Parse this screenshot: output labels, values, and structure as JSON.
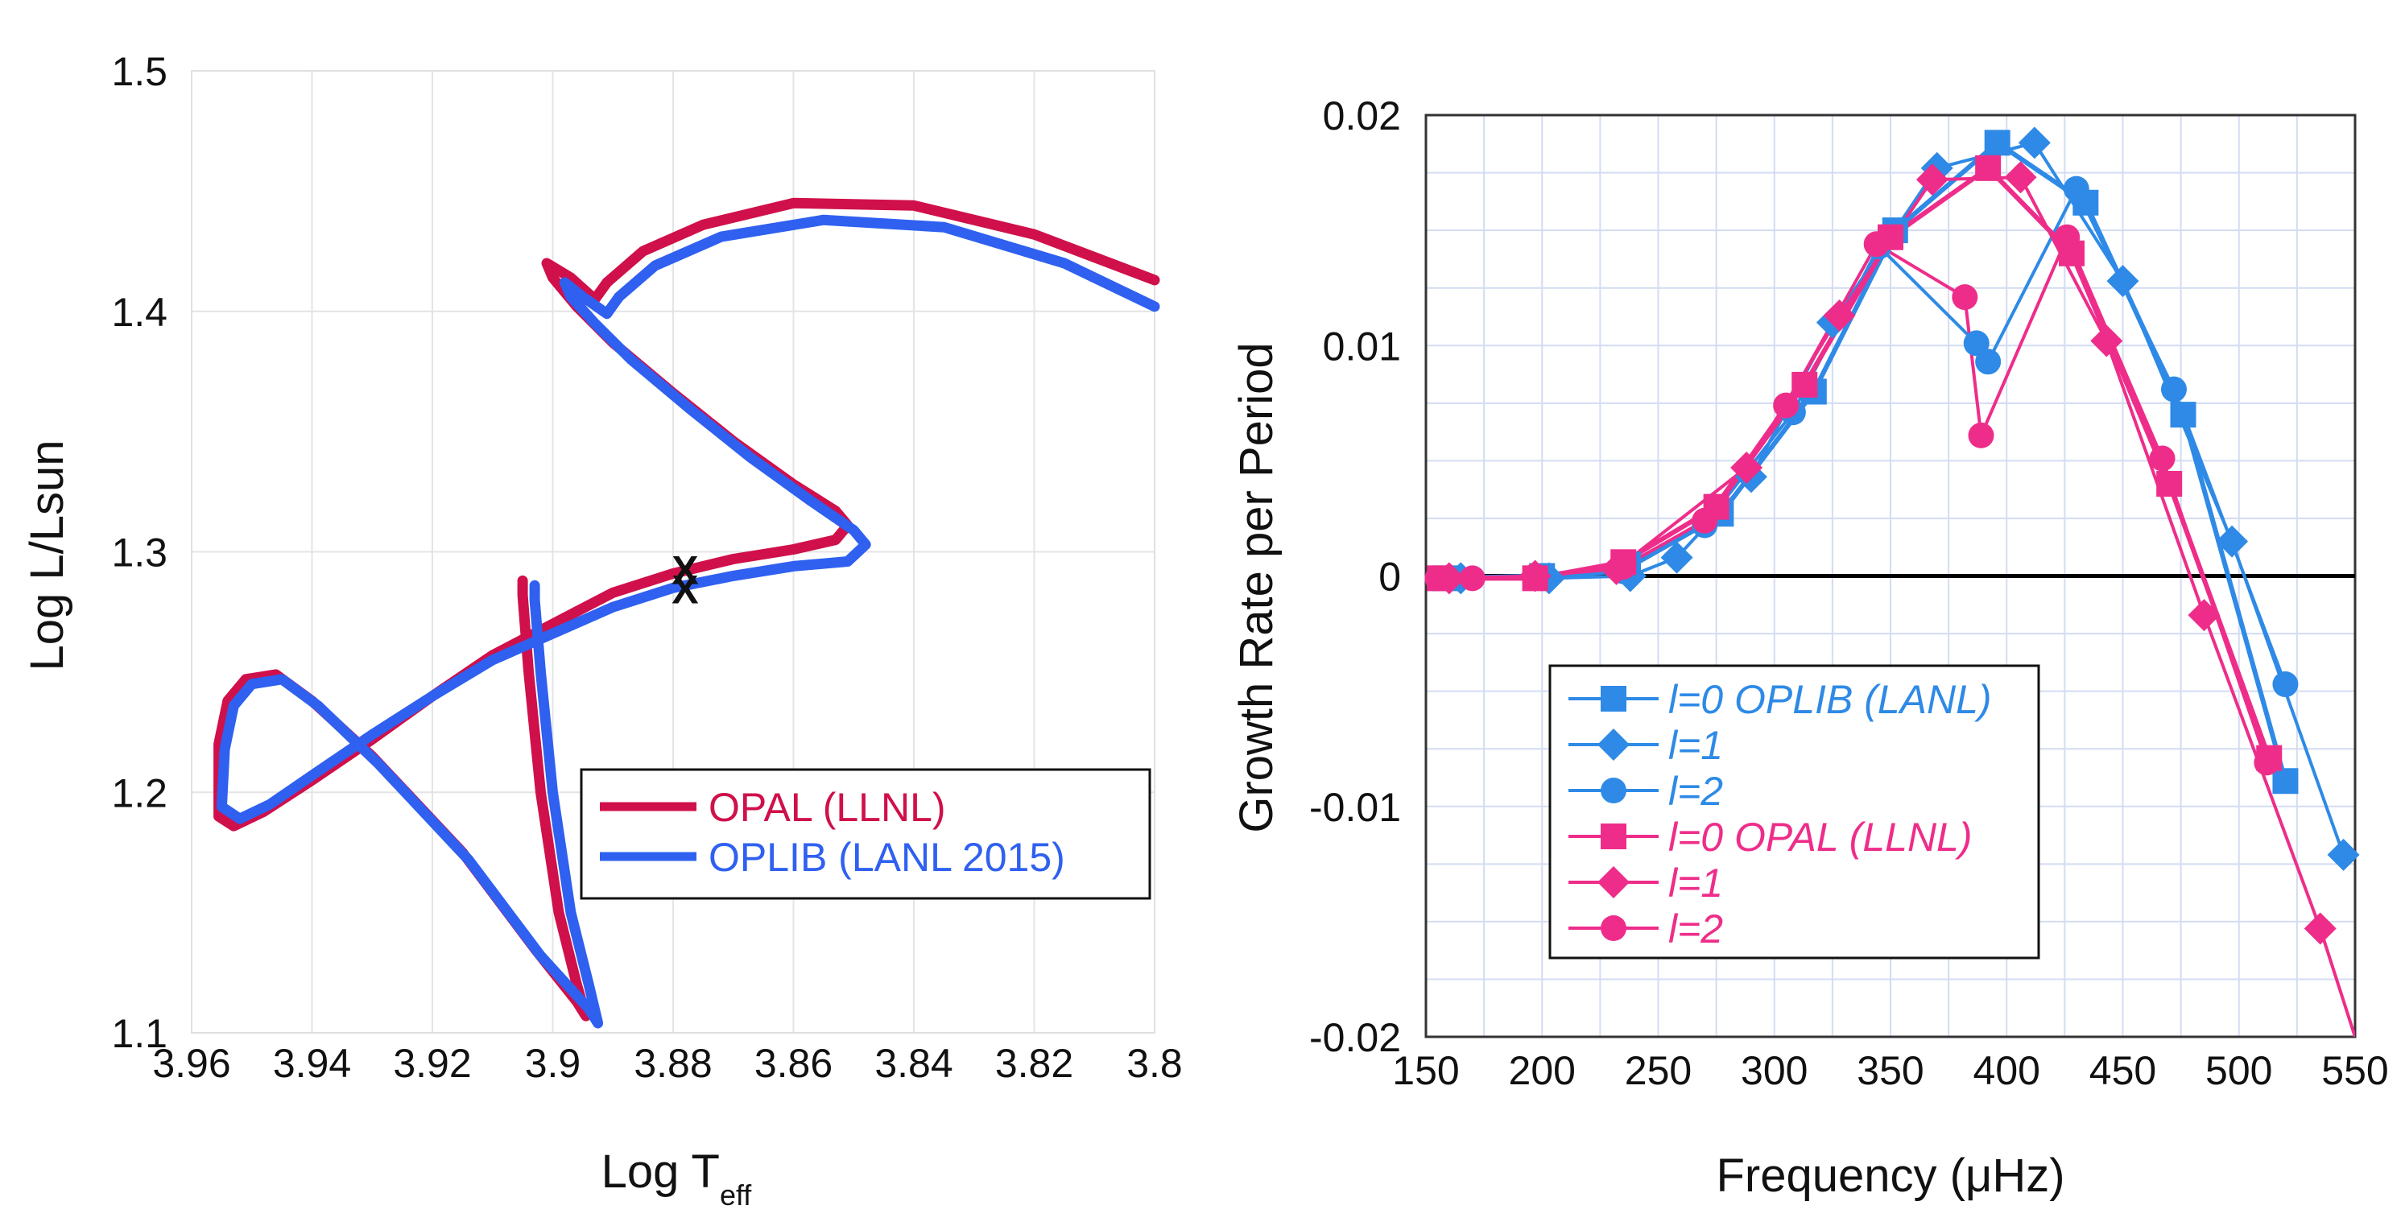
{
  "chart_data": [
    {
      "type": "line",
      "xlabel_main": "Log T",
      "xlabel_sub": "eff",
      "ylabel": "Log L/Lsun",
      "xlim": [
        3.96,
        3.8
      ],
      "ylim": [
        1.1,
        1.5
      ],
      "x_tick_labels": [
        "3.96",
        "3.94",
        "3.92",
        "3.9",
        "3.88",
        "3.86",
        "3.84",
        "3.82",
        "3.8"
      ],
      "y_tick_labels": [
        "1.1",
        "1.2",
        "1.3",
        "1.4",
        "1.5"
      ],
      "marker_label": "X",
      "marker_points": [
        [
          3.878,
          1.294
        ],
        [
          3.878,
          1.286
        ]
      ],
      "legend": "inside-bottom-right",
      "series": [
        {
          "name": "OPAL (LLNL)",
          "color": "#d0104a",
          "points": [
            [
              3.905,
              1.288
            ],
            [
              3.905,
              1.282
            ],
            [
              3.904,
              1.25
            ],
            [
              3.902,
              1.2
            ],
            [
              3.899,
              1.15
            ],
            [
              3.896,
              1.12
            ],
            [
              3.8945,
              1.107
            ],
            [
              3.896,
              1.113
            ],
            [
              3.903,
              1.135
            ],
            [
              3.915,
              1.175
            ],
            [
              3.93,
              1.215
            ],
            [
              3.94,
              1.238
            ],
            [
              3.946,
              1.249
            ],
            [
              3.951,
              1.247
            ],
            [
              3.954,
              1.238
            ],
            [
              3.9555,
              1.22
            ],
            [
              3.9555,
              1.19
            ],
            [
              3.953,
              1.186
            ],
            [
              3.948,
              1.192
            ],
            [
              3.94,
              1.205
            ],
            [
              3.93,
              1.222
            ],
            [
              3.92,
              1.24
            ],
            [
              3.91,
              1.257
            ],
            [
              3.9,
              1.27
            ],
            [
              3.89,
              1.283
            ],
            [
              3.88,
              1.291
            ],
            [
              3.87,
              1.297
            ],
            [
              3.86,
              1.301
            ],
            [
              3.853,
              1.305
            ],
            [
              3.851,
              1.311
            ],
            [
              3.853,
              1.317
            ],
            [
              3.86,
              1.328
            ],
            [
              3.87,
              1.346
            ],
            [
              3.88,
              1.366
            ],
            [
              3.89,
              1.387
            ],
            [
              3.896,
              1.402
            ],
            [
              3.9,
              1.414
            ],
            [
              3.901,
              1.42
            ],
            [
              3.897,
              1.414
            ],
            [
              3.893,
              1.405
            ],
            [
              3.891,
              1.412
            ],
            [
              3.885,
              1.425
            ],
            [
              3.875,
              1.436
            ],
            [
              3.86,
              1.445
            ],
            [
              3.84,
              1.444
            ],
            [
              3.82,
              1.432
            ],
            [
              3.8,
              1.413
            ]
          ]
        },
        {
          "name": "OPLIB (LANL 2015)",
          "color": "#2f60f0",
          "points": [
            [
              3.903,
              1.286
            ],
            [
              3.903,
              1.28
            ],
            [
              3.902,
              1.25
            ],
            [
              3.9,
              1.2
            ],
            [
              3.897,
              1.15
            ],
            [
              3.894,
              1.12
            ],
            [
              3.8925,
              1.104
            ],
            [
              3.894,
              1.11
            ],
            [
              3.902,
              1.132
            ],
            [
              3.914,
              1.172
            ],
            [
              3.929,
              1.212
            ],
            [
              3.939,
              1.236
            ],
            [
              3.945,
              1.247
            ],
            [
              3.95,
              1.245
            ],
            [
              3.953,
              1.236
            ],
            [
              3.9545,
              1.218
            ],
            [
              3.955,
              1.194
            ],
            [
              3.952,
              1.189
            ],
            [
              3.947,
              1.195
            ],
            [
              3.94,
              1.207
            ],
            [
              3.93,
              1.224
            ],
            [
              3.92,
              1.24
            ],
            [
              3.91,
              1.255
            ],
            [
              3.9,
              1.266
            ],
            [
              3.89,
              1.277
            ],
            [
              3.88,
              1.285
            ],
            [
              3.87,
              1.29
            ],
            [
              3.86,
              1.294
            ],
            [
              3.851,
              1.296
            ],
            [
              3.848,
              1.303
            ],
            [
              3.85,
              1.309
            ],
            [
              3.857,
              1.321
            ],
            [
              3.867,
              1.339
            ],
            [
              3.877,
              1.359
            ],
            [
              3.887,
              1.38
            ],
            [
              3.893,
              1.395
            ],
            [
              3.897,
              1.406
            ],
            [
              3.898,
              1.412
            ],
            [
              3.895,
              1.406
            ],
            [
              3.891,
              1.399
            ],
            [
              3.889,
              1.406
            ],
            [
              3.883,
              1.419
            ],
            [
              3.872,
              1.431
            ],
            [
              3.855,
              1.438
            ],
            [
              3.835,
              1.435
            ],
            [
              3.815,
              1.42
            ],
            [
              3.8,
              1.402
            ]
          ]
        }
      ]
    },
    {
      "type": "line",
      "xlabel": "Frequency (μHz)",
      "ylabel": "Growth Rate per Period",
      "xlim": [
        150,
        550
      ],
      "ylim": [
        -0.02,
        0.02
      ],
      "x_tick_labels": [
        "150",
        "200",
        "250",
        "300",
        "350",
        "400",
        "450",
        "500",
        "550"
      ],
      "y_tick_labels": [
        "0.02",
        "0.01",
        "0",
        "-0.01",
        "-0.02"
      ],
      "legend": "inside-lower-left",
      "series": [
        {
          "name": "l=0 OPLIB (LANL)",
          "color": "#2e8ae6",
          "marker": "square",
          "points": [
            [
              158,
              -0.0001
            ],
            [
              200,
              0
            ],
            [
              237,
              0.0005
            ],
            [
              277,
              0.0027
            ],
            [
              317,
              0.008
            ],
            [
              352,
              0.015
            ],
            [
              396,
              0.0188
            ],
            [
              434,
              0.0162
            ],
            [
              476,
              0.007
            ],
            [
              520,
              -0.0089
            ]
          ]
        },
        {
          "name": "l=1",
          "color": "#2e8ae6",
          "marker": "diamond",
          "points": [
            [
              165,
              -0.0001
            ],
            [
              203,
              -0.0001
            ],
            [
              238,
              0
            ],
            [
              258,
              0.0008
            ],
            [
              290,
              0.0043
            ],
            [
              325,
              0.011
            ],
            [
              370,
              0.0177
            ],
            [
              412,
              0.0188
            ],
            [
              450,
              0.0128
            ],
            [
              497,
              0.0015
            ],
            [
              545,
              -0.0121
            ]
          ]
        },
        {
          "name": "l=2",
          "color": "#2e8ae6",
          "marker": "circle",
          "points": [
            [
              160,
              -0.0001
            ],
            [
              200,
              -0.0001
            ],
            [
              235,
              0.0002
            ],
            [
              270,
              0.0022
            ],
            [
              308,
              0.0071
            ],
            [
              345,
              0.0143
            ],
            [
              387,
              0.0101
            ],
            [
              392,
              0.0093
            ],
            [
              430,
              0.0168
            ],
            [
              472,
              0.0081
            ],
            [
              520,
              -0.0047
            ]
          ]
        },
        {
          "name": "l=0 OPAL (LLNL)",
          "color": "#ee2d8a",
          "marker": "square",
          "points": [
            [
              156,
              -0.0001
            ],
            [
              197,
              -0.0001
            ],
            [
              235,
              0.0006
            ],
            [
              275,
              0.003
            ],
            [
              313,
              0.0083
            ],
            [
              350,
              0.0147
            ],
            [
              392,
              0.0177
            ],
            [
              428,
              0.014
            ],
            [
              470,
              0.004
            ],
            [
              513,
              -0.0079
            ]
          ]
        },
        {
          "name": "l=1",
          "color": "#ee2d8a",
          "marker": "diamond",
          "points": [
            [
              160,
              -0.0001
            ],
            [
              197,
              0
            ],
            [
              232,
              0.0003
            ],
            [
              288,
              0.0047
            ],
            [
              328,
              0.0113
            ],
            [
              368,
              0.0172
            ],
            [
              406,
              0.0173
            ],
            [
              443,
              0.0102
            ],
            [
              485,
              -0.0017
            ],
            [
              535,
              -0.0153
            ],
            [
              550,
              -0.02
            ]
          ]
        },
        {
          "name": "l=2",
          "color": "#ee2d8a",
          "marker": "circle",
          "points": [
            [
              155,
              -0.0001
            ],
            [
              170,
              -0.0001
            ],
            [
              197,
              0
            ],
            [
              235,
              0.0004
            ],
            [
              270,
              0.0024
            ],
            [
              305,
              0.0074
            ],
            [
              344,
              0.0144
            ],
            [
              382,
              0.0121
            ],
            [
              389,
              0.0061
            ],
            [
              426,
              0.0147
            ],
            [
              467,
              0.0051
            ],
            [
              512,
              -0.0081
            ]
          ]
        }
      ]
    }
  ]
}
